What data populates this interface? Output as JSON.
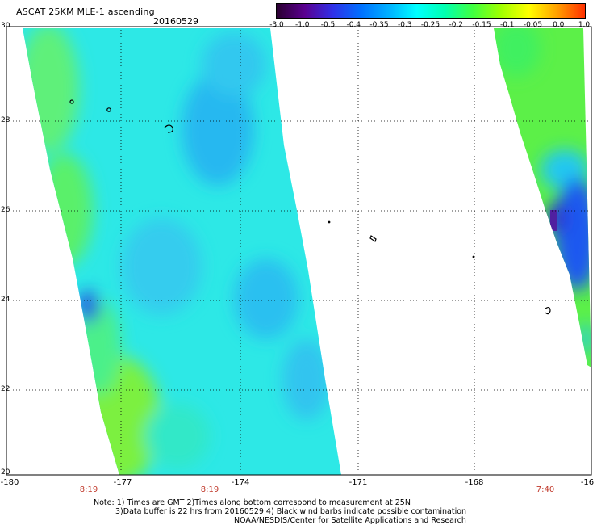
{
  "header": {
    "title": "ASCAT 25KM MLE-1 ascending",
    "date": "20160529"
  },
  "colorbar": {
    "labels": [
      "-3.0",
      "-1.0",
      "-0.5",
      "-0.4",
      "-0.35",
      "-0.3",
      "-0.25",
      "-0.2",
      "-0.15",
      "-0.1",
      "-0.05",
      "0.0",
      "1.0"
    ],
    "colors": [
      "#2a0030",
      "#5a0090",
      "#3030e8",
      "#0070ff",
      "#00b0ff",
      "#00ffff",
      "#00ffb0",
      "#40ff40",
      "#a0ff00",
      "#ffff00",
      "#ffa000",
      "#ff3000"
    ]
  },
  "axes": {
    "lat_labels": [
      "30",
      "28",
      "26",
      "24",
      "22",
      "20"
    ],
    "lon_labels": [
      "-180",
      "-177",
      "-174",
      "-171",
      "-168",
      "-16"
    ],
    "time_labels": [
      "8:19",
      "8:19",
      "7:40"
    ]
  },
  "footer": {
    "line1": "Note: 1) Times are GMT 2)Times along bottom correspond to measurement at 25N",
    "line2": "3)Data buffer is 22 hrs from 20160529 4) Black wind barbs indicate possible contamination",
    "line3": "NOAA/NESDIS/Center for Satellite Applications and Research"
  }
}
